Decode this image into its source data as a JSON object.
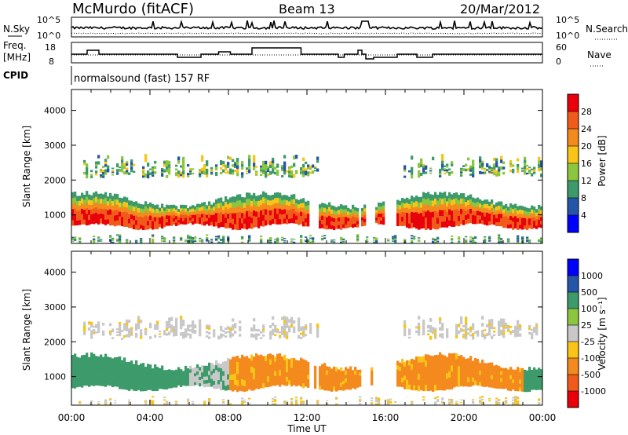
{
  "header": {
    "station": "McMurdo (fitACF)",
    "beam": "Beam 13",
    "date": "20/Mar/2012"
  },
  "noise_panel": {
    "left_label": "N.Sky",
    "right_label": "N.Search",
    "left_ticks": [
      "10^5",
      "10^0"
    ],
    "right_ticks": [
      "10^5",
      "10^0"
    ]
  },
  "freq_panel": {
    "left_label_1": "Freq.",
    "left_label_2": "[MHz]",
    "right_label": "Nave",
    "left_ticks": [
      "18",
      "8"
    ],
    "right_ticks": [
      "60",
      "0"
    ]
  },
  "cpid": {
    "label": "CPID",
    "program": "normalsound (fast) 157 RF"
  },
  "power_panel": {
    "ylabel": "Slant Range [km]",
    "colorbar_label": "Power [dB]",
    "colorbar_ticks": [
      "4",
      "8",
      "12",
      "16",
      "20",
      "24",
      "28"
    ]
  },
  "velocity_panel": {
    "ylabel": "Slant Range [km]",
    "colorbar_label": "Velocity [m s⁻¹]",
    "colorbar_ticks": [
      "-1000",
      "-500",
      "-100",
      "-25",
      "25",
      "100",
      "500",
      "1000"
    ]
  },
  "xaxis": {
    "label": "Time UT",
    "ticks": [
      "00:00",
      "04:00",
      "08:00",
      "12:00",
      "16:00",
      "20:00",
      "00:00"
    ]
  },
  "colors": {
    "power_scale": [
      "#0000ff",
      "#2555a8",
      "#3d9b6b",
      "#8cc63f",
      "#f7c417",
      "#f48a1e",
      "#f05a1a",
      "#e8000b"
    ],
    "velocity_scale": [
      "#e8000b",
      "#f05a1a",
      "#f48a1e",
      "#f7c417",
      "#c8c8c8",
      "#8cc63f",
      "#3d9b6b",
      "#2555a8",
      "#0000ff"
    ],
    "ground_scatter": "#c0c0c0"
  },
  "chart_data": [
    {
      "type": "line",
      "title": "",
      "series": [],
      "x_range_hours": [
        0,
        24
      ],
      "ylim": [
        1,
        100000
      ],
      "log_scale": true
    },
    {
      "type": "line",
      "series": [],
      "x_range_hours": [
        0,
        24
      ],
      "ylim": [
        8,
        18
      ]
    },
    {
      "type": "heatmap",
      "quantity": "Power",
      "units": "dB",
      "x_range_hours": [
        0,
        24
      ],
      "ylim": [
        180,
        4600
      ],
      "y_ticks": [
        1000,
        2000,
        3000,
        4000
      ],
      "bands": [
        {
          "start_h": 0,
          "end_h": 24,
          "range_lo": 600,
          "range_hi": 1600,
          "value": 26
        },
        {
          "start_h": 0.5,
          "end_h": 24,
          "range_lo": 2000,
          "range_hi": 2700,
          "value": 14
        },
        {
          "start_h": 0,
          "end_h": 24,
          "range_lo": 200,
          "range_hi": 400,
          "value": 8
        }
      ]
    },
    {
      "type": "heatmap",
      "quantity": "Velocity",
      "units": "m s-1",
      "x_range_hours": [
        0,
        24
      ],
      "ylim": [
        180,
        4600
      ],
      "y_ticks": [
        1000,
        2000,
        3000,
        4000
      ],
      "bands": [
        {
          "start_h": 0,
          "end_h": 6,
          "range_lo": 700,
          "range_hi": 1600,
          "value": 300
        },
        {
          "start_h": 6,
          "end_h": 8,
          "range_lo": 700,
          "range_hi": 1500,
          "value": 0
        },
        {
          "start_h": 8,
          "end_h": 23,
          "range_lo": 700,
          "range_hi": 1500,
          "value": -150
        },
        {
          "start_h": 23,
          "end_h": 24,
          "range_lo": 700,
          "range_hi": 1200,
          "value": 120
        },
        {
          "start_h": 1,
          "end_h": 24,
          "range_lo": 2100,
          "range_hi": 2700,
          "value": 0
        }
      ]
    }
  ]
}
